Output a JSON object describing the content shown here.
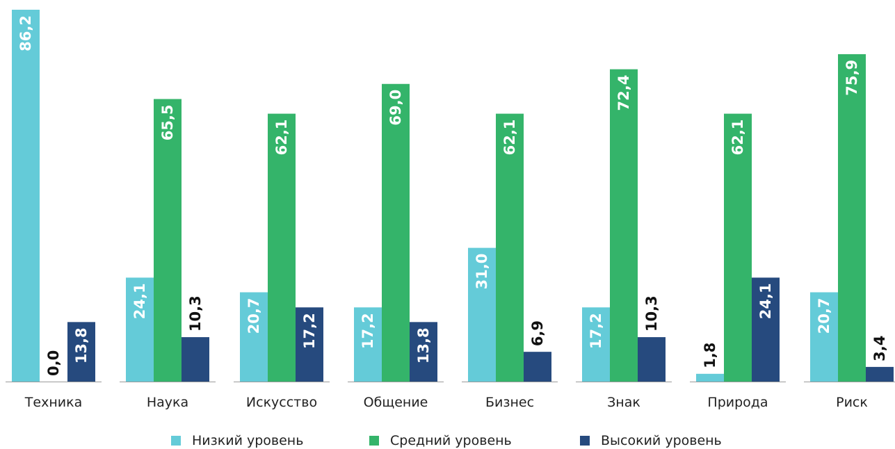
{
  "chart_data": {
    "type": "bar",
    "categories": [
      "Техника",
      "Наука",
      "Искусство",
      "Общение",
      "Бизнес",
      "Знак",
      "Природа",
      "Риск"
    ],
    "series": [
      {
        "name": "Низкий уровень",
        "color": "#64cbd8",
        "values": [
          86.2,
          24.1,
          20.7,
          17.2,
          31.0,
          17.2,
          1.8,
          20.7
        ],
        "labels": [
          "86,2",
          "24,1",
          "20,7",
          "17,2",
          "31,0",
          "17,2",
          "1,8",
          "20,7"
        ]
      },
      {
        "name": "Средний уровень",
        "color": "#34b46a",
        "values": [
          0.0,
          65.5,
          62.1,
          69.0,
          62.1,
          72.4,
          62.1,
          75.9
        ],
        "labels": [
          "0,0",
          "65,5",
          "62,1",
          "69,0",
          "62,1",
          "72,4",
          "62,1",
          "75,9"
        ]
      },
      {
        "name": "Высокий уровень",
        "color": "#264a7e",
        "values": [
          13.8,
          10.3,
          17.2,
          13.8,
          6.9,
          10.3,
          24.1,
          3.4
        ],
        "labels": [
          "13,8",
          "10,3",
          "17,2",
          "13,8",
          "6,9",
          "10,3",
          "24,1",
          "3,4"
        ]
      }
    ],
    "ylim": [
      0,
      90
    ],
    "legend_position": "bottom",
    "grid": false
  }
}
